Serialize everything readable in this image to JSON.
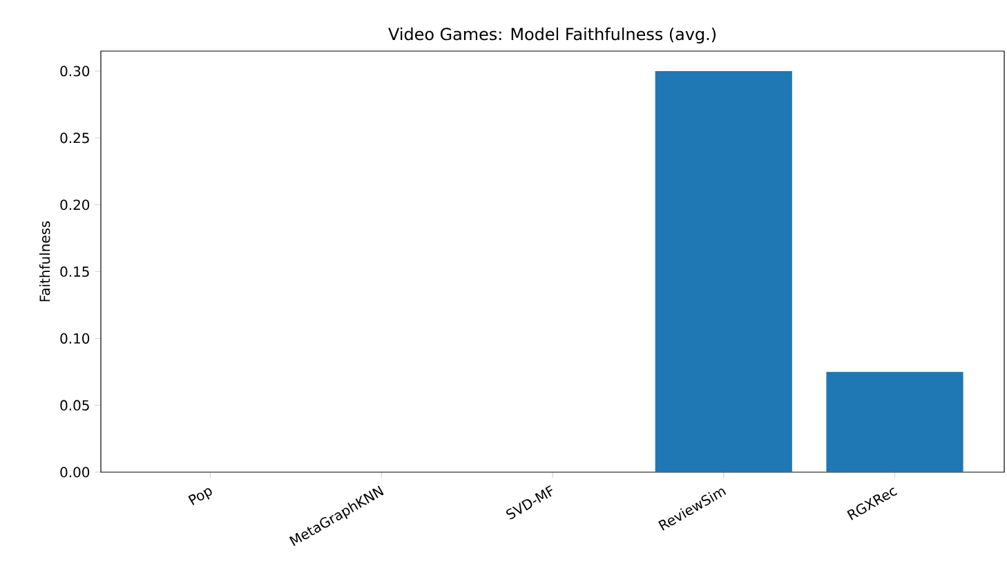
{
  "chart_data": {
    "type": "bar",
    "title": "Video Games: Model Faithfulness (avg.)",
    "ylabel": "Faithfulness",
    "categories": [
      "Pop",
      "MetaGraphKNN",
      "SVD-MF",
      "ReviewSim",
      "RGXRec"
    ],
    "values": [
      0,
      0,
      0,
      0.3,
      0.075
    ],
    "color": "#1f77b4",
    "ylim": [
      0,
      0.315
    ],
    "yticks": [
      {
        "value": 0,
        "label": "0.00"
      },
      {
        "value": 0.05,
        "label": "0.05"
      },
      {
        "value": 0.1,
        "label": "0.10"
      },
      {
        "value": 0.15,
        "label": "0.15"
      },
      {
        "value": 0.2,
        "label": "0.20"
      },
      {
        "value": 0.25,
        "label": "0.25"
      },
      {
        "value": 0.3,
        "label": "0.30"
      }
    ]
  }
}
